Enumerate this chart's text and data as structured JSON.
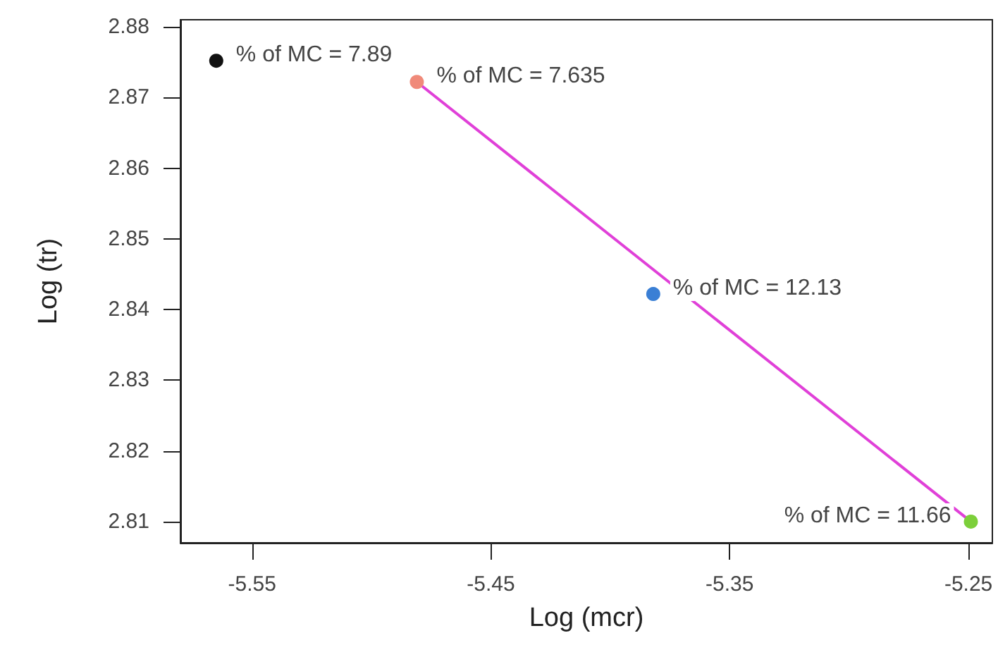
{
  "chart_data": {
    "type": "scatter",
    "xlabel": "Log (mcr)",
    "ylabel": "Log (tr)",
    "series": [
      {
        "x": [
          -5.565,
          -5.481,
          -5.382,
          -5.249
        ],
        "values": [
          2.8752,
          2.8722,
          2.8422,
          2.81
        ],
        "colors": [
          "#111111",
          "#f08a7a",
          "#3a7fd5",
          "#7ccf3a"
        ],
        "marker": "circle"
      },
      {
        "type": "line",
        "x": [
          -5.481,
          -5.249
        ],
        "values": [
          2.8722,
          2.81
        ],
        "color": "#e040d8"
      }
    ],
    "annotations": [
      {
        "text": "% of MC = 7.89",
        "x": -5.565,
        "y": 2.8752
      },
      {
        "text": "% of MC = 7.635",
        "x": -5.481,
        "y": 2.8722
      },
      {
        "text": "% of MC = 12.13",
        "x": -5.382,
        "y": 2.8422
      },
      {
        "text": "% of MC = 11.66",
        "x": -5.249,
        "y": 2.81
      }
    ],
    "xlim": [
      -5.58,
      -5.24
    ],
    "xticks": [
      -5.55,
      -5.45,
      -5.35,
      -5.25
    ],
    "ylim": [
      2.807,
      2.881
    ],
    "yticks": [
      2.81,
      2.82,
      2.83,
      2.84,
      2.85,
      2.86,
      2.87,
      2.88
    ],
    "grid": false
  }
}
